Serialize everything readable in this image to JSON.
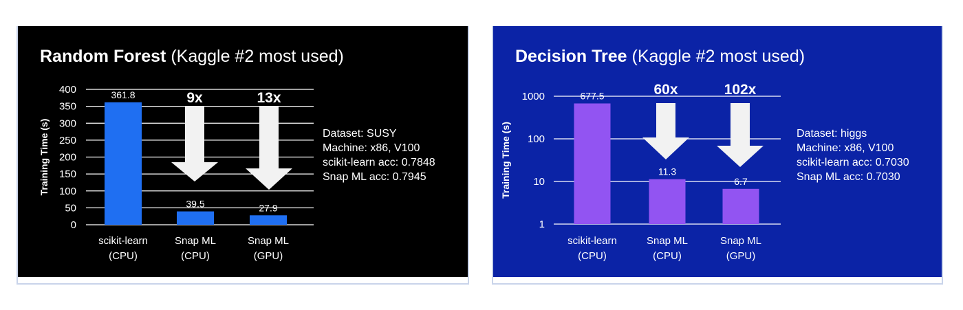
{
  "colors": {
    "left_background": "#000000",
    "right_background": "#0b23a6",
    "left_bar": "#1f6ff2",
    "right_bar": "#9254f2",
    "arrow": "#f2f2f2",
    "text": "#ffffff",
    "panel_border": "#c9d4ea"
  },
  "chart_data": [
    {
      "type": "bar",
      "title": "Random Forest",
      "subtitle": "(Kaggle #2 most used)",
      "ylabel": "Training Time (s)",
      "xlabel": "",
      "ylim": [
        0,
        400
      ],
      "yscale": "linear",
      "y_ticks": [
        "0",
        "50",
        "100",
        "150",
        "200",
        "250",
        "300",
        "350",
        "400"
      ],
      "grid": true,
      "categories": [
        "scikit-learn (CPU)",
        "Snap ML (CPU)",
        "Snap ML (GPU)"
      ],
      "category_labels": [
        [
          "scikit-learn",
          "(CPU)"
        ],
        [
          "Snap ML",
          "(CPU)"
        ],
        [
          "Snap ML",
          "(GPU)"
        ]
      ],
      "values": [
        361.8,
        39.5,
        27.9
      ],
      "data_labels": [
        "361.8",
        "39.5",
        "27.9"
      ],
      "speedups": [
        "9x",
        "13x"
      ],
      "info": [
        "Dataset: SUSY",
        "Machine: x86, V100",
        "scikit-learn acc: 0.7848",
        "Snap ML acc: 0.7945"
      ]
    },
    {
      "type": "bar",
      "title": "Decision Tree",
      "subtitle": "(Kaggle #2 most used)",
      "ylabel": "Training Time (s)",
      "xlabel": "",
      "ylim": [
        1,
        1000
      ],
      "yscale": "log",
      "y_ticks": [
        "1",
        "10",
        "100",
        "1000"
      ],
      "grid": true,
      "categories": [
        "scikit-learn (CPU)",
        "Snap ML (CPU)",
        "Snap ML (GPU)"
      ],
      "category_labels": [
        [
          "scikit-learn",
          "(CPU)"
        ],
        [
          "Snap ML",
          "(CPU)"
        ],
        [
          "Snap ML",
          "(GPU)"
        ]
      ],
      "values": [
        677.5,
        11.3,
        6.7
      ],
      "data_labels": [
        "677.5",
        "11.3",
        "6.7"
      ],
      "speedups": [
        "60x",
        "102x"
      ],
      "info": [
        "Dataset: higgs",
        "Machine: x86, V100",
        "scikit-learn acc: 0.7030",
        "Snap ML acc: 0.7030"
      ]
    }
  ]
}
